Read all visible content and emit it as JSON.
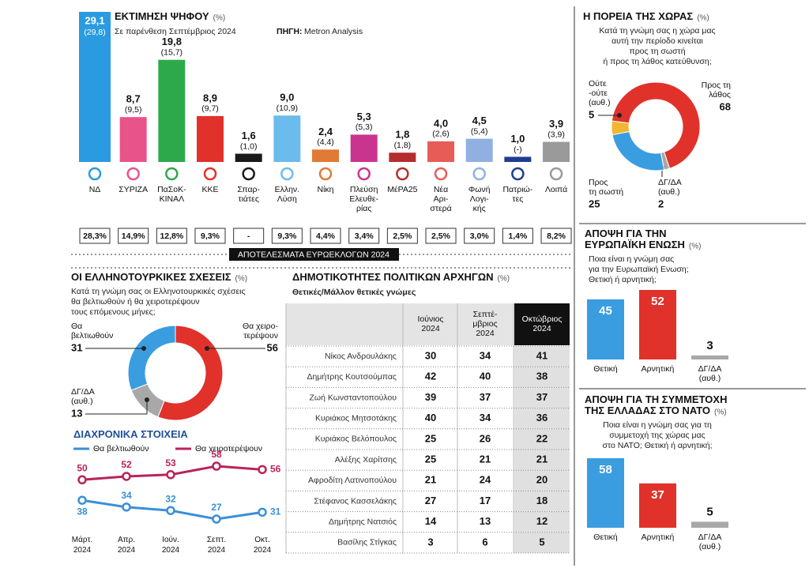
{
  "chart_data": [
    {
      "type": "bar",
      "title": "ΕΚΤΙΜΗΣΗ ΨΗΦΟΥ",
      "unit": "(%)",
      "subtitle": "Σε παρένθεση Σεπτέμβριος 2024",
      "source_label": "ΠΗΓΗ:",
      "source": "Metron Analysis",
      "categories": [
        "ΝΔ",
        "ΣΥΡΙΖΑ",
        "ΠαΣοΚ-\nΚΙΝΑΛ",
        "ΚΚΕ",
        "Σπαρ-\nτιάτες",
        "Ελλην.\nΛύση",
        "Νίκη",
        "Πλεύση\nΕλευθε-\nρίας",
        "ΜέΡΑ25",
        "Νέα\nΑρι-\nστερά",
        "Φωνή\nΛογι-\nκής",
        "Πατριώ-\nτες",
        "Λοιπά"
      ],
      "values": [
        29.1,
        8.7,
        19.8,
        8.9,
        1.6,
        9.0,
        2.4,
        5.3,
        1.8,
        4.0,
        4.5,
        1.0,
        3.9
      ],
      "value_labels": [
        "29,1",
        "8,7",
        "19,8",
        "8,9",
        "1,6",
        "9,0",
        "2,4",
        "5,3",
        "1,8",
        "4,0",
        "4,5",
        "1,0",
        "3,9"
      ],
      "colors": [
        "#2a9be0",
        "#e8538a",
        "#2da84a",
        "#e0312b",
        "#1a1a1a",
        "#6bbcec",
        "#e07a35",
        "#c9348e",
        "#b52e2e",
        "#e85c58",
        "#8fb0e0",
        "#1e3d8f",
        "#9a9a9a"
      ],
      "previous_values": [
        29.8,
        9.5,
        15.7,
        9.7,
        1.0,
        10.9,
        4.4,
        5.3,
        1.8,
        2.6,
        5.4,
        null,
        3.9
      ],
      "previous_value_labels": [
        "(29,8)",
        "(9,5)",
        "(15,7)",
        "(9,7)",
        "(1,0)",
        "(10,9)",
        "(4,4)",
        "(5,3)",
        "(1,8)",
        "(2,6)",
        "(5,4)",
        "(-)",
        "(3,9)"
      ],
      "euro_results_label": "ΑΠΟΤΕΛΕΣΜΑΤΑ ΕΥΡΩΕΚΛΟΓΩΝ 2024",
      "euro_values": [
        28.3,
        14.9,
        12.8,
        9.3,
        null,
        9.3,
        4.4,
        3.4,
        2.5,
        2.5,
        3.0,
        1.4,
        8.2
      ],
      "euro_value_labels": [
        "28,3%",
        "14,9%",
        "12,8%",
        "9,3%",
        "-",
        "9,3%",
        "4,4%",
        "3,4%",
        "2,5%",
        "2,5%",
        "3,0%",
        "1,4%",
        "8,2%"
      ]
    },
    {
      "type": "donut",
      "title": "Η ΠΟΡΕΙΑ ΤΗΣ ΧΩΡΑΣ",
      "unit": "(%)",
      "subtitle": "Κατά τη γνώμη σας η χώρα μας\nαυτή την περίοδο κινείται\nπρος τη σωστή\nή προς τη λάθος κατεύθυνση;",
      "categories": [
        "Προς τη\nλάθος",
        "ΔΓ/ΔΑ\n(αυθ.)",
        "Προς\nτη σωστή",
        "Ούτε\n-ούτε\n(αυθ.)"
      ],
      "values": [
        68,
        2,
        25,
        5
      ],
      "colors": [
        "#e0312b",
        "#a8a8a8",
        "#3a9de0",
        "#f2b632"
      ]
    },
    {
      "type": "donut",
      "title": "ΟΙ ΕΛΛΗΝΟΤΟΥΡΚΙΚΕΣ ΣΧΕΣΕΙΣ",
      "unit": "(%)",
      "subtitle": "Κατά τη γνώμη σας οι Ελληνοτουρκικές σχέσεις\nθα βελτιωθούν ή θα χειροτερέψουν\nτους επόμενους μήνες;",
      "categories": [
        "Θα χειρο-\nτερέψουν",
        "ΔΓ/ΔΑ\n(αυθ.)",
        "Θα\nβελτιωθούν"
      ],
      "values": [
        56,
        13,
        31
      ],
      "colors": [
        "#e0312b",
        "#a8a8a8",
        "#3a9de0"
      ]
    },
    {
      "type": "line",
      "title": "ΔΙΑΧΡΟΝΙΚΑ ΣΤΟΙΧΕΙΑ",
      "categories": [
        "Μάρτ.\n2024",
        "Απρ.\n2024",
        "Ιούν.\n2024",
        "Σεπτ.\n2024",
        "Οκτ.\n2024"
      ],
      "series": [
        {
          "name": "Θα βελτιωθούν",
          "color": "#3a8fd6",
          "values": [
            38,
            34,
            32,
            27,
            31
          ]
        },
        {
          "name": "Θα χειροτερέψουν",
          "color": "#b8245a",
          "values": [
            50,
            52,
            53,
            58,
            56
          ]
        }
      ]
    },
    {
      "type": "bar",
      "title": "ΑΠΟΨΗ ΓΙΑ ΤΗΝ\nΕΥΡΩΠΑΪΚΗ ΕΝΩΣΗ",
      "unit": "(%)",
      "subtitle": "Ποια είναι η γνώμη σας\nγια την Ευρωπαϊκή Ενωση;\nΘετική ή αρνητική;",
      "categories": [
        "Θετική",
        "Αρνητική",
        "ΔΓ/ΔΑ\n(αυθ.)"
      ],
      "values": [
        45,
        52,
        3
      ],
      "colors": [
        "#3a9de0",
        "#e0312b",
        "#a8a8a8"
      ]
    },
    {
      "type": "bar",
      "title": "ΑΠΟΨΗ ΓΙΑ ΤΗ ΣΥΜΜΕΤΟΧΗ\nΤΗΣ ΕΛΛΑΔΑΣ ΣΤΟ ΝΑΤΟ",
      "unit": "(%)",
      "subtitle": "Ποια είναι η γνώμη σας για τη\nσυμμετοχή της χώρας μας\nστο ΝΑΤΟ; Θετική ή αρνητική;",
      "categories": [
        "Θετική",
        "Αρνητική",
        "ΔΓ/ΔΑ\n(αυθ.)"
      ],
      "values": [
        58,
        37,
        5
      ],
      "colors": [
        "#3a9de0",
        "#e0312b",
        "#a8a8a8"
      ]
    }
  ],
  "table": {
    "title": "ΔΗΜΟΤΙΚΟΤΗΤΕΣ ΠΟΛΙΤΙΚΩΝ ΑΡΧΗΓΩΝ",
    "unit": "(%)",
    "subtitle": "Θετικές/Μάλλον θετικές γνώμες",
    "columns": [
      "Ιούνιος\n2024",
      "Σεπτέ-\nμβριος\n2024",
      "Οκτώβριος\n2024"
    ],
    "rows": [
      {
        "name": "Νίκος Ανδρουλάκης",
        "values": [
          30,
          34,
          41
        ]
      },
      {
        "name": "Δημήτρης Κουτσούμπας",
        "values": [
          42,
          40,
          38
        ]
      },
      {
        "name": "Ζωή Κωνσταντοπούλου",
        "values": [
          39,
          37,
          37
        ]
      },
      {
        "name": "Κυριάκος Μητσοτάκης",
        "values": [
          40,
          34,
          36
        ]
      },
      {
        "name": "Κυριάκος Βελόπουλος",
        "values": [
          25,
          26,
          22
        ]
      },
      {
        "name": "Αλέξης Χαρίτσης",
        "values": [
          25,
          21,
          21
        ]
      },
      {
        "name": "Αφροδίτη Λατινοπούλου",
        "values": [
          21,
          24,
          20
        ]
      },
      {
        "name": "Στέφανος Κασσελάκης",
        "values": [
          27,
          17,
          18
        ]
      },
      {
        "name": "Δημήτρης Νατσιός",
        "values": [
          14,
          13,
          12
        ]
      },
      {
        "name": "Βασίλης Στίγκας",
        "values": [
          3,
          6,
          5
        ]
      }
    ]
  }
}
